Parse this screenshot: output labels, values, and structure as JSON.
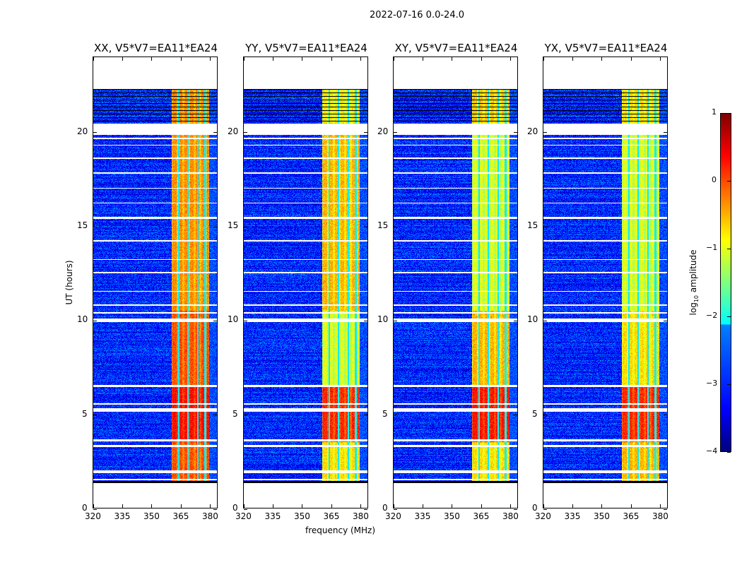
{
  "suptitle": "2022-07-16 0.0-24.0",
  "chart_data": {
    "type": "heatmap",
    "xlabel": "frequency (MHz)",
    "ylabel": "UT (hours)",
    "xlim": [
      320,
      384
    ],
    "ylim": [
      0,
      24
    ],
    "xticks": [
      320,
      335,
      350,
      365,
      380
    ],
    "yticks": [
      0,
      5,
      10,
      15,
      20
    ],
    "colorbar": {
      "label_prefix": "log",
      "label_sub": "10",
      "label_suffix": " amplitude",
      "range": [
        -4,
        1
      ],
      "ticks": [
        -4,
        -3,
        -2,
        -1,
        0,
        1
      ],
      "tick_labels": [
        "−4",
        "−3",
        "−2",
        "−1",
        "0",
        "1"
      ],
      "colormap": "jet"
    },
    "data_time_range": [
      1.3,
      22.3
    ],
    "background_level": -3.2,
    "rfi_band_mhz": [
      360.5,
      380.0
    ],
    "rfi_band_dividers_mhz": [
      364.3,
      369.0,
      374.0,
      378.0
    ],
    "flagged_hours": [
      [
        1.45,
        1.55
      ],
      [
        1.85,
        2.0
      ],
      [
        3.25,
        3.35
      ],
      [
        3.55,
        3.65
      ],
      [
        5.1,
        5.3
      ],
      [
        5.5,
        5.55
      ],
      [
        6.45,
        6.55
      ],
      [
        9.9,
        10.1
      ],
      [
        10.35,
        10.42
      ],
      [
        10.75,
        10.82
      ],
      [
        11.5,
        11.55
      ],
      [
        12.5,
        12.55
      ],
      [
        13.2,
        13.25
      ],
      [
        14.2,
        14.25
      ],
      [
        15.4,
        15.5
      ],
      [
        16.2,
        16.25
      ],
      [
        17.0,
        17.05
      ],
      [
        17.8,
        17.85
      ],
      [
        18.6,
        18.65
      ],
      [
        19.3,
        19.35
      ],
      [
        19.65,
        19.7
      ],
      [
        19.85,
        20.45
      ]
    ],
    "panels": [
      {
        "title": "XX, V5*V7=EA11*EA24",
        "band_levels": [
          {
            "t": [
              1.3,
              3.5
            ],
            "v": 0.0
          },
          {
            "t": [
              3.5,
              6.5
            ],
            "v": 0.35
          },
          {
            "t": [
              6.5,
              10.5
            ],
            "v": 0.0
          },
          {
            "t": [
              10.5,
              20.5
            ],
            "v": -0.3
          },
          {
            "t": [
              20.5,
              22.3
            ],
            "v": -0.3
          }
        ]
      },
      {
        "title": "YY, V5*V7=EA11*EA24",
        "band_levels": [
          {
            "t": [
              1.3,
              3.5
            ],
            "v": -0.7
          },
          {
            "t": [
              3.5,
              6.5
            ],
            "v": 0.2
          },
          {
            "t": [
              6.5,
              10.5
            ],
            "v": -1.0
          },
          {
            "t": [
              10.5,
              20.5
            ],
            "v": -0.5
          },
          {
            "t": [
              20.5,
              22.3
            ],
            "v": -0.8
          }
        ]
      },
      {
        "title": "XY, V5*V7=EA11*EA24",
        "band_levels": [
          {
            "t": [
              1.3,
              3.5
            ],
            "v": -0.7
          },
          {
            "t": [
              3.5,
              6.5
            ],
            "v": 0.3
          },
          {
            "t": [
              6.5,
              10.5
            ],
            "v": -0.5
          },
          {
            "t": [
              10.5,
              20.5
            ],
            "v": -1.0
          },
          {
            "t": [
              20.5,
              22.3
            ],
            "v": -0.6
          }
        ]
      },
      {
        "title": "YX, V5*V7=EA11*EA24",
        "band_levels": [
          {
            "t": [
              1.3,
              3.5
            ],
            "v": -0.5
          },
          {
            "t": [
              3.5,
              6.5
            ],
            "v": 0.2
          },
          {
            "t": [
              6.5,
              10.5
            ],
            "v": -0.7
          },
          {
            "t": [
              10.5,
              20.5
            ],
            "v": -1.0
          },
          {
            "t": [
              20.5,
              22.3
            ],
            "v": -0.7
          }
        ]
      }
    ]
  }
}
